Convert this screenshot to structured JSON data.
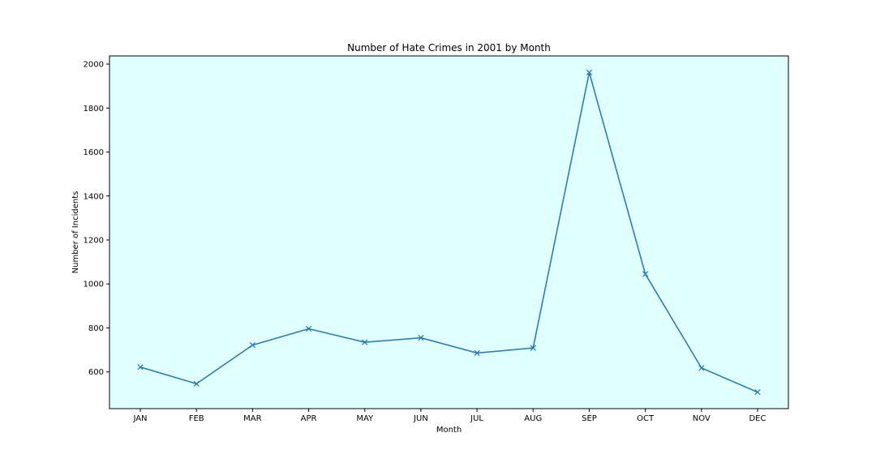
{
  "chart_data": {
    "type": "line",
    "title": "Number of Hate Crimes in 2001 by Month",
    "xlabel": "Month",
    "ylabel": "Number of Incidents",
    "categories": [
      "JAN",
      "FEB",
      "MAR",
      "APR",
      "MAY",
      "JUN",
      "JUL",
      "AUG",
      "SEP",
      "OCT",
      "NOV",
      "DEC"
    ],
    "series": [
      {
        "values": [
          622,
          546,
          722,
          796,
          735,
          755,
          686,
          709,
          1962,
          1045,
          618,
          508
        ],
        "color": "#1f77b4",
        "marker": "x"
      }
    ],
    "ylim": [
      433,
      2037
    ],
    "yticks": [
      600,
      800,
      1000,
      1200,
      1400,
      1600,
      1800,
      2000
    ],
    "grid": false,
    "legend": "none",
    "plot_background": "#e0ffff"
  }
}
